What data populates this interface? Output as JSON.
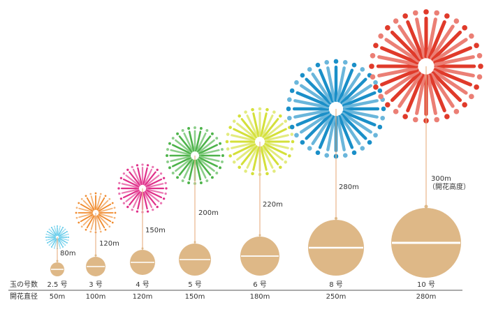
{
  "row_headers": {
    "shell": "玉の号数",
    "burst": "開花直径"
  },
  "colors": {
    "shell": "#deb887",
    "string": "#e8b48a",
    "text": "#333333",
    "rule": "#555555"
  },
  "shells": [
    {
      "size": "2.5 号",
      "diameter": "50m",
      "height": "80m",
      "note": "",
      "color": "#5bc8e8"
    },
    {
      "size": "3 号",
      "diameter": "100m",
      "height": "120m",
      "note": "",
      "color": "#f08a2c"
    },
    {
      "size": "4 号",
      "diameter": "120m",
      "height": "150m",
      "note": "",
      "color": "#e0308a"
    },
    {
      "size": "5 号",
      "diameter": "150m",
      "height": "200m",
      "note": "",
      "color": "#4db34a"
    },
    {
      "size": "6 号",
      "diameter": "180m",
      "height": "220m",
      "note": "",
      "color": "#d4e03a"
    },
    {
      "size": "8 号",
      "diameter": "250m",
      "height": "280m",
      "note": "",
      "color": "#1a8fc8"
    },
    {
      "size": "10 号",
      "diameter": "280m",
      "height": "300m",
      "note": "（開花高度）",
      "color": "#e03a2a"
    }
  ]
}
